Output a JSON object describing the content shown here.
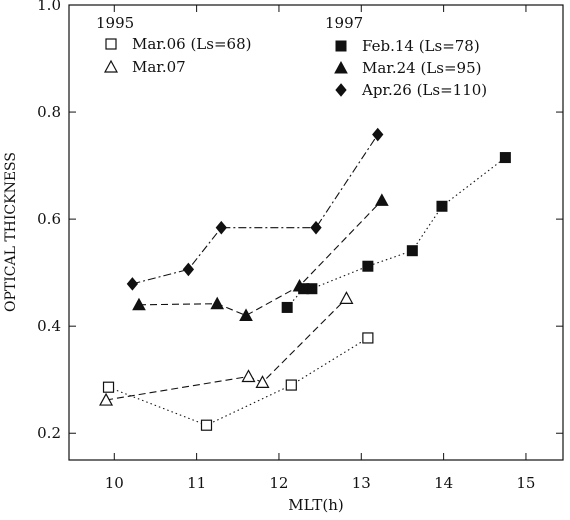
{
  "chart_data": {
    "type": "scatter",
    "title": "",
    "xlabel": "MLT(h)",
    "ylabel": "OPTICAL THICKNESS",
    "xlim": [
      9.45,
      15.45
    ],
    "ylim": [
      0.15,
      1.0
    ],
    "xticks": [
      10,
      11,
      12,
      13,
      14,
      15
    ],
    "yticks": [
      0.2,
      0.4,
      0.6,
      0.8,
      1.0
    ],
    "xtick_labels": [
      "10",
      "11",
      "12",
      "13",
      "14",
      "15"
    ],
    "ytick_labels": [
      "0.2",
      "0.4",
      "0.6",
      "0.8",
      "1.0"
    ],
    "legend": {
      "placement": "top",
      "group_1995": "1995",
      "group_1997": "1997"
    },
    "series": [
      {
        "name": "Mar.06 (Ls=68)",
        "group": "1995",
        "marker": "square-open",
        "line": "dotted",
        "x": [
          9.93,
          11.12,
          12.15,
          13.08
        ],
        "y": [
          0.286,
          0.215,
          0.29,
          0.378
        ]
      },
      {
        "name": "Mar.07",
        "group": "1995",
        "marker": "triangle-open",
        "line": "dashed",
        "x": [
          9.9,
          11.63,
          11.8,
          12.82
        ],
        "y": [
          0.262,
          0.306,
          0.295,
          0.452
        ]
      },
      {
        "name": "Feb.14 (Ls=78)",
        "group": "1997",
        "marker": "square-filled",
        "line": "dotted",
        "x": [
          12.1,
          12.3,
          12.4,
          13.08,
          13.62,
          13.98,
          14.75
        ],
        "y": [
          0.435,
          0.47,
          0.47,
          0.512,
          0.541,
          0.624,
          0.715
        ]
      },
      {
        "name": "Mar.24 (Ls=95)",
        "group": "1997",
        "marker": "triangle-filled",
        "line": "dashed",
        "x": [
          10.3,
          11.25,
          11.6,
          12.25,
          13.25
        ],
        "y": [
          0.44,
          0.442,
          0.42,
          0.475,
          0.635
        ]
      },
      {
        "name": "Apr.26 (Ls=110)",
        "group": "1997",
        "marker": "diamond-filled",
        "line": "dashdot",
        "x": [
          10.22,
          10.9,
          11.3,
          12.45,
          13.2
        ],
        "y": [
          0.479,
          0.506,
          0.584,
          0.584,
          0.758
        ]
      }
    ]
  }
}
